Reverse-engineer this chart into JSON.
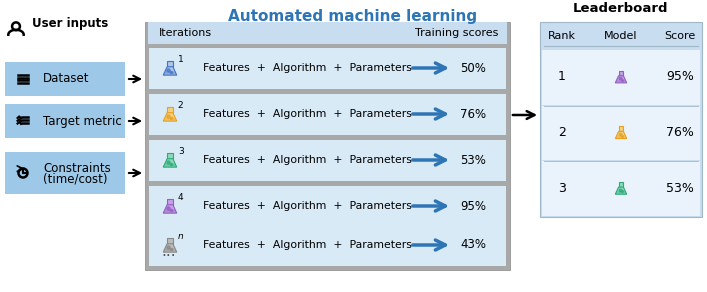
{
  "title": "Automated machine learning",
  "title_color": "#2E75B6",
  "bg_color": "#FFFFFF",
  "left_box_color": "#9DC8E8",
  "center_panel_bg": "#A8A8A8",
  "center_header_bg": "#C8DDF0",
  "center_row_bg": "#D9EAF7",
  "right_panel_bg": "#C8DDF0",
  "right_row_bg": "#EAF3FB",
  "user_inputs_label": "User inputs",
  "left_items": [
    "Dataset",
    "Target metric",
    "Constraints\n(time/cost)"
  ],
  "iterations_label": "Iterations",
  "training_scores_label": "Training scores",
  "rows": [
    {
      "num": "1",
      "score": "50%",
      "flask_color": "#4472C4",
      "flask_fill": "#AEC6E8"
    },
    {
      "num": "2",
      "score": "76%",
      "flask_color": "#E8A020",
      "flask_fill": "#F5D080"
    },
    {
      "num": "3",
      "score": "53%",
      "flask_color": "#2AAA7A",
      "flask_fill": "#90D8B8"
    },
    {
      "num": "4",
      "score": "95%",
      "flask_color": "#9060C0",
      "flask_fill": "#C8A0E8"
    },
    {
      "num": "n",
      "score": "43%",
      "flask_color": "#888888",
      "flask_fill": "#BBBBBB"
    }
  ],
  "leaderboard_title": "Leaderboard",
  "leaderboard_headers": [
    "Rank",
    "Model",
    "Score"
  ],
  "leaderboard_rows": [
    {
      "rank": "1",
      "score": "95%",
      "flask_color": "#9060C0",
      "flask_fill": "#C8A0E8"
    },
    {
      "rank": "2",
      "score": "76%",
      "flask_color": "#E8A020",
      "flask_fill": "#F5D080"
    },
    {
      "rank": "3",
      "score": "53%",
      "flask_color": "#2AAA7A",
      "flask_fill": "#90D8B8"
    }
  ]
}
